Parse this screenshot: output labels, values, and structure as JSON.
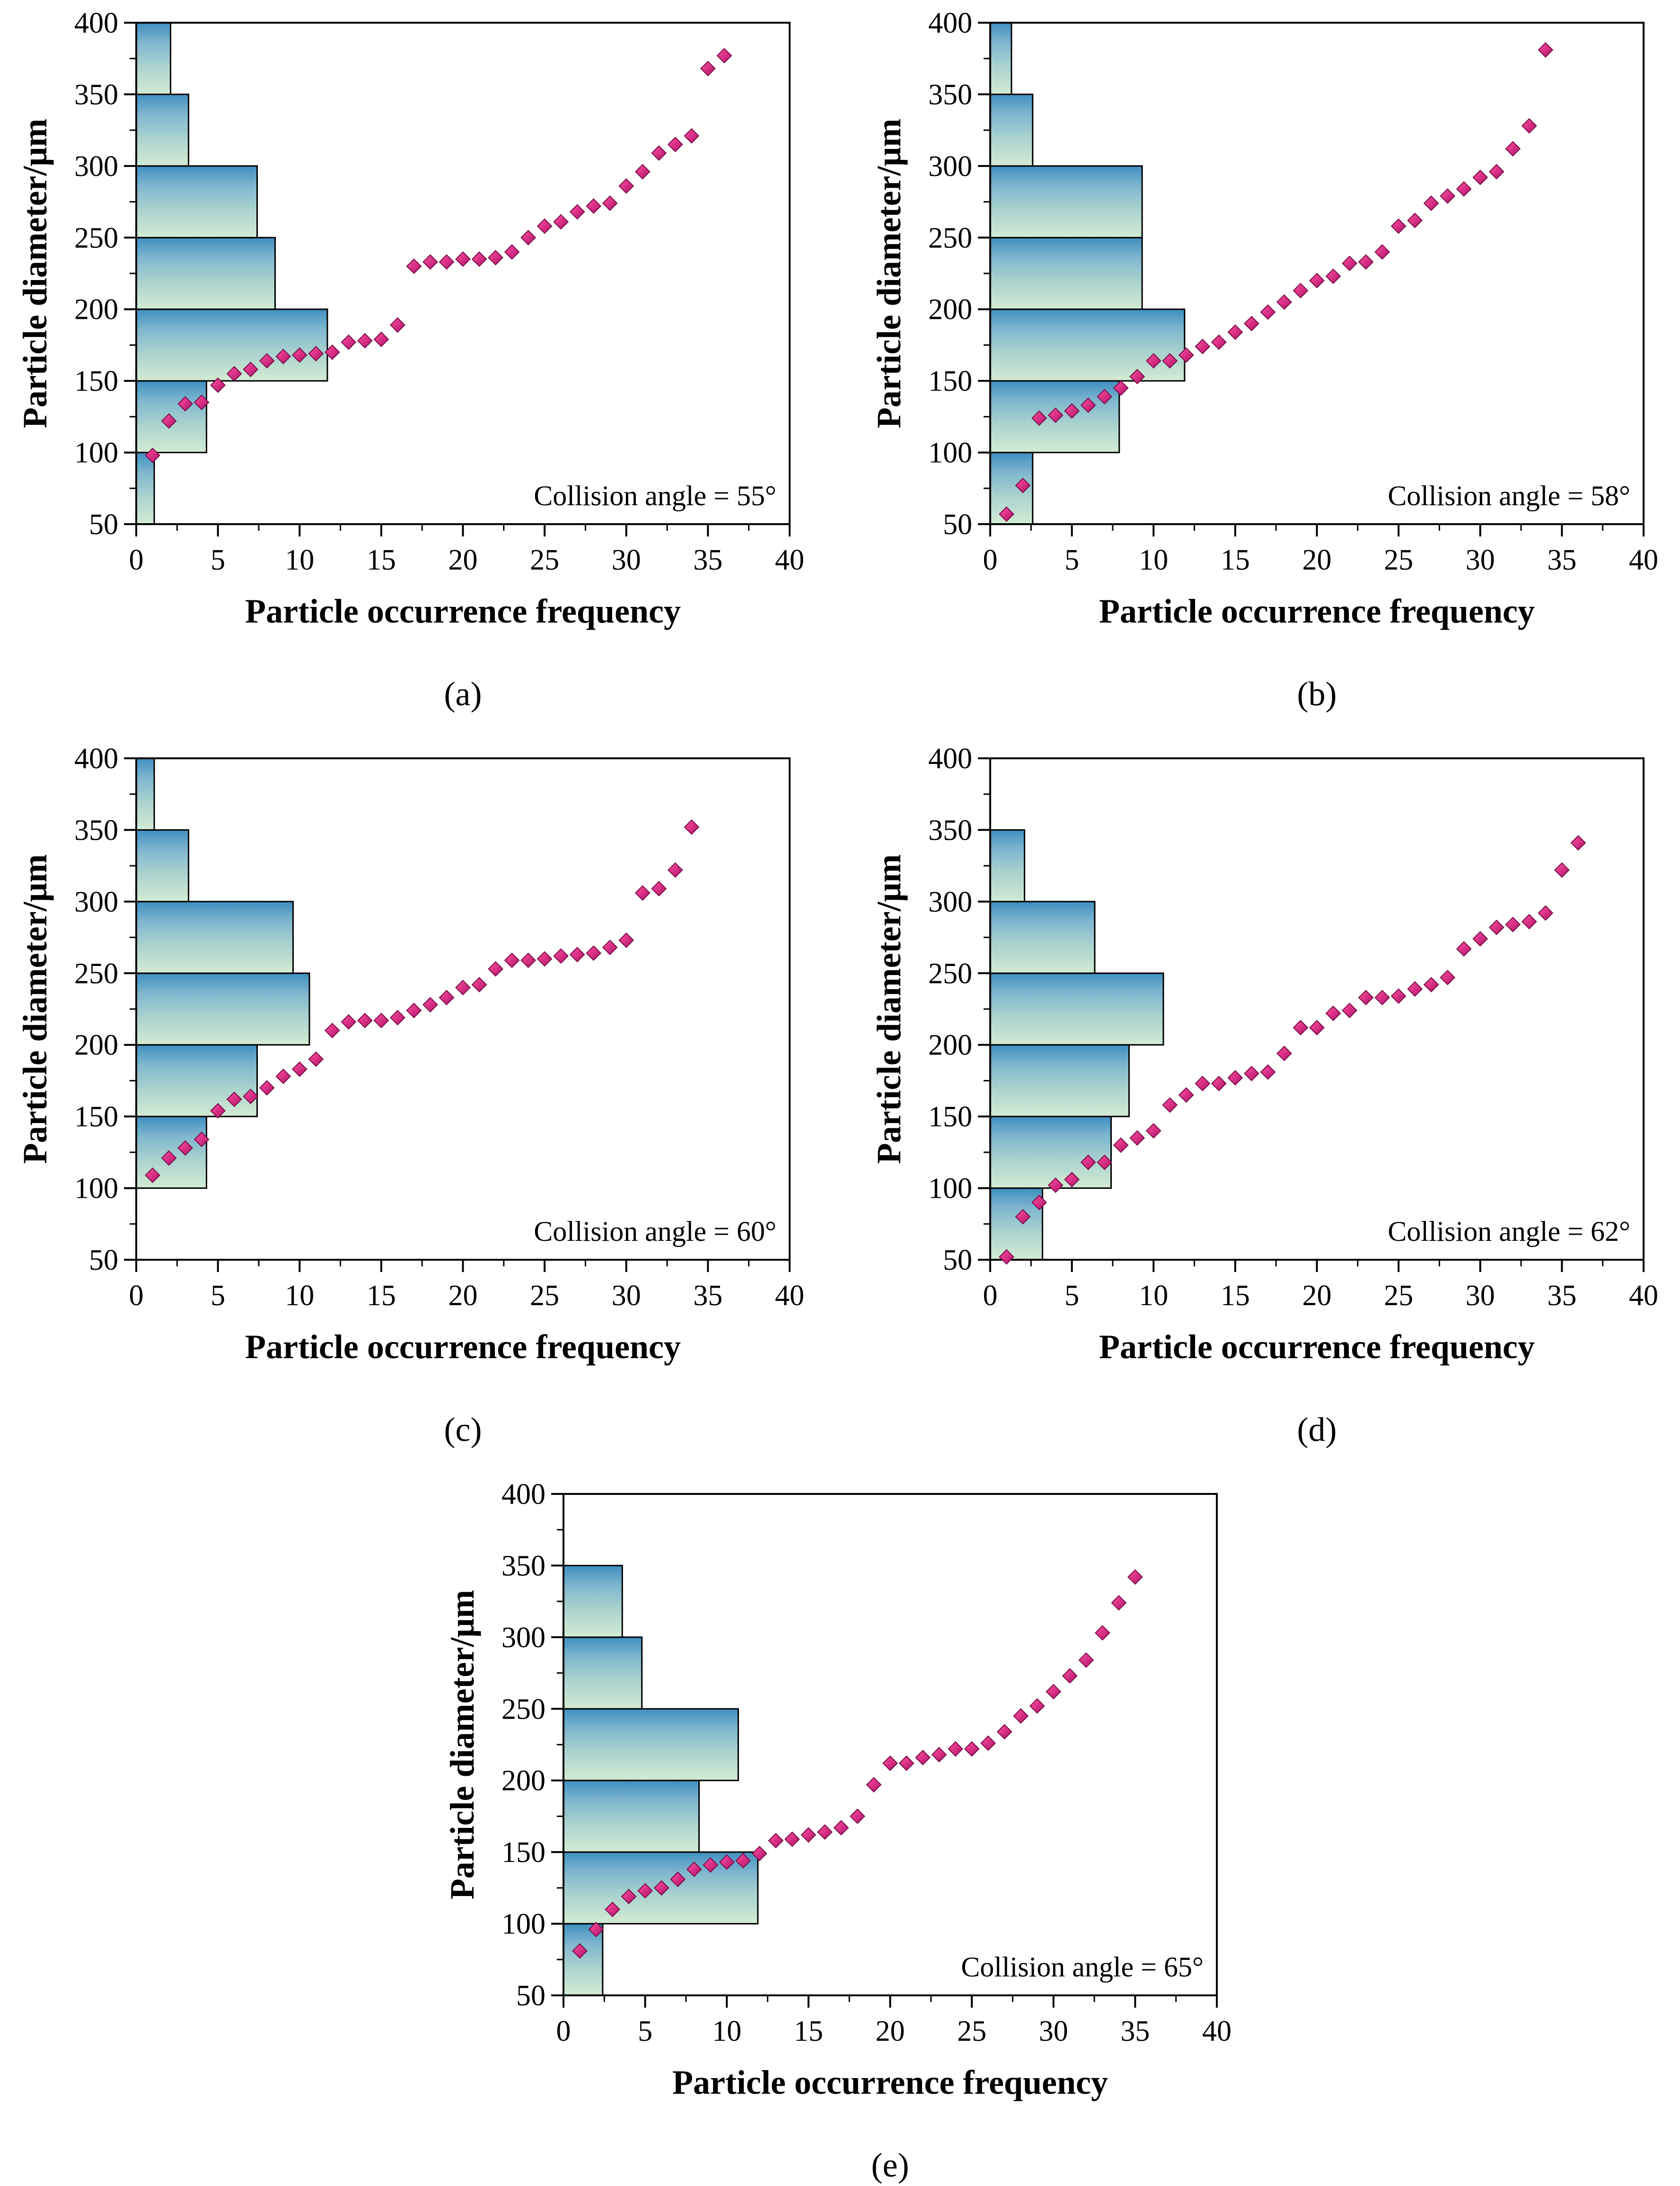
{
  "figure_caption_format": "(%s)",
  "chart_data": [
    {
      "panel": "a",
      "type": "scatter",
      "xlabel": "Particle occurrence frequency",
      "ylabel": "Particle diameter/μm",
      "xlim": [
        0,
        40
      ],
      "ylim": [
        50,
        400
      ],
      "xticks": [
        0,
        5,
        10,
        15,
        20,
        25,
        30,
        35,
        40
      ],
      "yticks": [
        50,
        100,
        150,
        200,
        250,
        300,
        350,
        400
      ],
      "annotation": "Collision angle = 55°",
      "histogram": {
        "bins": [
          [
            50,
            100
          ],
          [
            100,
            150
          ],
          [
            150,
            200
          ],
          [
            200,
            250
          ],
          [
            250,
            300
          ],
          [
            300,
            350
          ],
          [
            350,
            400
          ]
        ],
        "counts": [
          1.1,
          4.3,
          11.7,
          8.5,
          7.4,
          3.2,
          2.1
        ]
      },
      "points": {
        "x": [
          1,
          2,
          3,
          4,
          5,
          6,
          7,
          8,
          9,
          10,
          11,
          12,
          13,
          14,
          15,
          16,
          17,
          18,
          19,
          20,
          21,
          22,
          23,
          24,
          25,
          26,
          27,
          28,
          29,
          30,
          31,
          32,
          33,
          34,
          35,
          36
        ],
        "y": [
          98,
          122,
          134,
          135,
          147,
          155,
          158,
          164,
          167,
          168,
          169,
          170,
          177,
          178,
          179,
          189,
          230,
          233,
          233,
          235,
          235,
          236,
          240,
          250,
          258,
          261,
          268,
          272,
          274,
          286,
          296,
          309,
          315,
          321,
          368,
          377
        ]
      }
    },
    {
      "panel": "b",
      "type": "scatter",
      "xlabel": "Particle occurrence frequency",
      "ylabel": "Particle diameter/μm",
      "xlim": [
        0,
        40
      ],
      "ylim": [
        50,
        400
      ],
      "xticks": [
        0,
        5,
        10,
        15,
        20,
        25,
        30,
        35,
        40
      ],
      "yticks": [
        50,
        100,
        150,
        200,
        250,
        300,
        350,
        400
      ],
      "annotation": "Collision angle = 58°",
      "histogram": {
        "bins": [
          [
            50,
            100
          ],
          [
            100,
            150
          ],
          [
            150,
            200
          ],
          [
            200,
            250
          ],
          [
            250,
            300
          ],
          [
            300,
            350
          ],
          [
            350,
            400
          ]
        ],
        "counts": [
          2.6,
          7.9,
          11.9,
          9.3,
          9.3,
          2.6,
          1.3
        ]
      },
      "points": {
        "x": [
          1,
          2,
          3,
          4,
          5,
          6,
          7,
          8,
          9,
          10,
          11,
          12,
          13,
          14,
          15,
          16,
          17,
          18,
          19,
          20,
          21,
          22,
          23,
          24,
          25,
          26,
          27,
          28,
          29,
          30,
          31,
          32,
          33,
          34
        ],
        "y": [
          57,
          77,
          124,
          126,
          129,
          133,
          139,
          145,
          153,
          164,
          164,
          168,
          174,
          177,
          184,
          190,
          198,
          205,
          213,
          220,
          223,
          232,
          233,
          240,
          258,
          262,
          274,
          279,
          284,
          292,
          296,
          312,
          328,
          381
        ]
      }
    },
    {
      "panel": "c",
      "type": "scatter",
      "xlabel": "Particle occurrence frequency",
      "ylabel": "Particle diameter/μm",
      "xlim": [
        0,
        40
      ],
      "ylim": [
        50,
        400
      ],
      "xticks": [
        0,
        5,
        10,
        15,
        20,
        25,
        30,
        35,
        40
      ],
      "yticks": [
        50,
        100,
        150,
        200,
        250,
        300,
        350,
        400
      ],
      "annotation": "Collision angle = 60°",
      "histogram": {
        "bins": [
          [
            50,
            100
          ],
          [
            100,
            150
          ],
          [
            150,
            200
          ],
          [
            200,
            250
          ],
          [
            250,
            300
          ],
          [
            300,
            350
          ],
          [
            350,
            400
          ]
        ],
        "counts": [
          0,
          4.3,
          7.4,
          10.6,
          9.6,
          3.2,
          1.1
        ]
      },
      "points": {
        "x": [
          1,
          2,
          3,
          4,
          5,
          6,
          7,
          8,
          9,
          10,
          11,
          12,
          13,
          14,
          15,
          16,
          17,
          18,
          19,
          20,
          21,
          22,
          23,
          24,
          25,
          26,
          27,
          28,
          29,
          30,
          31,
          32,
          33,
          34
        ],
        "y": [
          109,
          121,
          128,
          134,
          154,
          162,
          164,
          170,
          178,
          183,
          190,
          210,
          216,
          217,
          217,
          219,
          224,
          228,
          233,
          240,
          242,
          253,
          259,
          259,
          260,
          262,
          263,
          264,
          268,
          273,
          306,
          309,
          322,
          352
        ]
      }
    },
    {
      "panel": "d",
      "type": "scatter",
      "xlabel": "Particle occurrence frequency",
      "ylabel": "Particle diameter/μm",
      "xlim": [
        0,
        40
      ],
      "ylim": [
        50,
        400
      ],
      "xticks": [
        0,
        5,
        10,
        15,
        20,
        25,
        30,
        35,
        40
      ],
      "yticks": [
        50,
        100,
        150,
        200,
        250,
        300,
        350,
        400
      ],
      "annotation": "Collision angle = 62°",
      "histogram": {
        "bins": [
          [
            50,
            100
          ],
          [
            100,
            150
          ],
          [
            150,
            200
          ],
          [
            200,
            250
          ],
          [
            250,
            300
          ],
          [
            300,
            350
          ],
          [
            350,
            400
          ]
        ],
        "counts": [
          3.2,
          7.4,
          8.5,
          10.6,
          6.4,
          2.1,
          0
        ]
      },
      "points": {
        "x": [
          1,
          2,
          3,
          4,
          5,
          6,
          7,
          8,
          9,
          10,
          11,
          12,
          13,
          14,
          15,
          16,
          17,
          18,
          19,
          20,
          21,
          22,
          23,
          24,
          25,
          26,
          27,
          28,
          29,
          30,
          31,
          32,
          33,
          34,
          35,
          36
        ],
        "y": [
          52,
          80,
          90,
          102,
          106,
          118,
          118,
          130,
          135,
          140,
          158,
          165,
          173,
          173,
          177,
          180,
          181,
          194,
          212,
          212,
          222,
          224,
          233,
          233,
          234,
          239,
          242,
          247,
          267,
          274,
          282,
          284,
          286,
          292,
          322,
          341
        ]
      }
    },
    {
      "panel": "e",
      "type": "scatter",
      "xlabel": "Particle occurrence frequency",
      "ylabel": "Particle diameter/μm",
      "xlim": [
        0,
        40
      ],
      "ylim": [
        50,
        400
      ],
      "xticks": [
        0,
        5,
        10,
        15,
        20,
        25,
        30,
        35,
        40
      ],
      "yticks": [
        50,
        100,
        150,
        200,
        250,
        300,
        350,
        400
      ],
      "annotation": "Collision angle = 65°",
      "histogram": {
        "bins": [
          [
            50,
            100
          ],
          [
            100,
            150
          ],
          [
            150,
            200
          ],
          [
            200,
            250
          ],
          [
            250,
            300
          ],
          [
            300,
            350
          ],
          [
            350,
            400
          ]
        ],
        "counts": [
          2.4,
          11.9,
          8.3,
          10.7,
          4.8,
          3.6,
          0
        ]
      },
      "points": {
        "x": [
          1,
          2,
          3,
          4,
          5,
          6,
          7,
          8,
          9,
          10,
          11,
          12,
          13,
          14,
          15,
          16,
          17,
          18,
          19,
          20,
          21,
          22,
          23,
          24,
          25,
          26,
          27,
          28,
          29,
          30,
          31,
          32,
          33,
          34,
          35
        ],
        "y": [
          81,
          96,
          110,
          119,
          123,
          125,
          131,
          138,
          141,
          143,
          144,
          149,
          158,
          159,
          162,
          164,
          167,
          175,
          197,
          212,
          212,
          216,
          218,
          222,
          222,
          226,
          234,
          245,
          252,
          262,
          273,
          284,
          303,
          324,
          342
        ]
      }
    }
  ]
}
